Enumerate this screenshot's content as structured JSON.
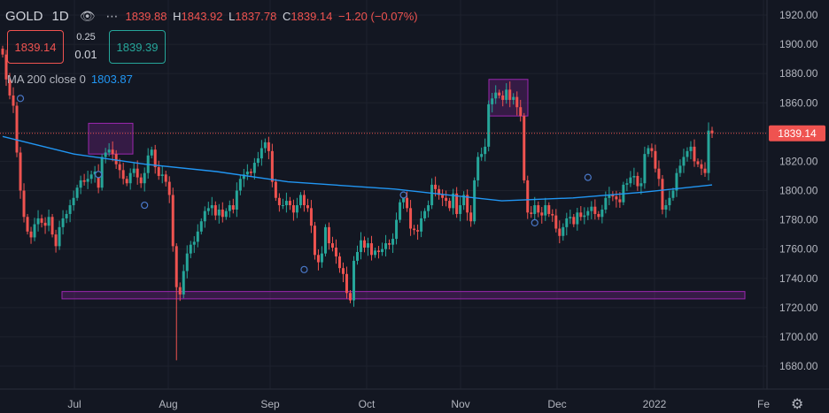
{
  "header": {
    "symbol": "GOLD",
    "timeframe": "1D",
    "open_value": "1839.88",
    "high_label": "H",
    "high_value": "1843.92",
    "low_label": "L",
    "low_value": "1837.78",
    "close_label": "C",
    "close_value": "1839.14",
    "change": "−1.20 (−0.07%)"
  },
  "trade": {
    "sell_price": "1839.14",
    "buy_price": "1839.39",
    "spread_top": "0.25",
    "spread_bottom": "0.01"
  },
  "indicator": {
    "label": "MA 200 close 0",
    "value": "1803.87"
  },
  "current_price_label": "1839.14",
  "colors": {
    "background": "#131722",
    "up": "#26a69a",
    "down": "#ef5350",
    "ma": "#2196f3",
    "zone": "#9c27b0",
    "price_label_bg": "#ef5350"
  },
  "chart_data": {
    "type": "candlestick",
    "y_axis": {
      "min": 1670,
      "max": 1928,
      "ticks": [
        "1920.00",
        "1900.00",
        "1880.00",
        "1860.00",
        "1840.00",
        "1820.00",
        "1800.00",
        "1780.00",
        "1760.00",
        "1740.00",
        "1720.00",
        "1700.00",
        "1680.00"
      ]
    },
    "x_axis": {
      "ticks": [
        "Jul",
        "Aug",
        "Sep",
        "Oct",
        "Nov",
        "Dec",
        "2022",
        "Fe"
      ]
    },
    "candles_close": [
      1893,
      1876,
      1865,
      1858,
      1826,
      1800,
      1782,
      1772,
      1768,
      1777,
      1781,
      1778,
      1776,
      1782,
      1770,
      1762,
      1775,
      1781,
      1784,
      1790,
      1795,
      1802,
      1807,
      1806,
      1808,
      1811,
      1813,
      1802,
      1823,
      1826,
      1828,
      1825,
      1818,
      1814,
      1808,
      1805,
      1812,
      1815,
      1809,
      1805,
      1812,
      1824,
      1828,
      1816,
      1810,
      1811,
      1806,
      1797,
      1762,
      1734,
      1729,
      1745,
      1757,
      1763,
      1765,
      1772,
      1779,
      1786,
      1788,
      1790,
      1783,
      1787,
      1782,
      1786,
      1790,
      1787,
      1800,
      1808,
      1811,
      1813,
      1812,
      1819,
      1822,
      1829,
      1833,
      1827,
      1806,
      1795,
      1790,
      1790,
      1793,
      1790,
      1785,
      1790,
      1797,
      1790,
      1788,
      1776,
      1756,
      1751,
      1757,
      1775,
      1764,
      1761,
      1755,
      1747,
      1743,
      1730,
      1725,
      1752,
      1758,
      1766,
      1761,
      1764,
      1756,
      1759,
      1758,
      1760,
      1764,
      1763,
      1767,
      1780,
      1792,
      1795,
      1788,
      1774,
      1773,
      1772,
      1781,
      1786,
      1790,
      1804,
      1801,
      1797,
      1795,
      1793,
      1788,
      1798,
      1784,
      1790,
      1797,
      1785,
      1779,
      1807,
      1823,
      1825,
      1830,
      1859,
      1863,
      1867,
      1865,
      1862,
      1869,
      1862,
      1864,
      1857,
      1851,
      1807,
      1785,
      1784,
      1790,
      1785,
      1783,
      1790,
      1784,
      1783,
      1774,
      1769,
      1775,
      1781,
      1782,
      1777,
      1785,
      1782,
      1783,
      1786,
      1789,
      1784,
      1782,
      1787,
      1795,
      1797,
      1796,
      1794,
      1792,
      1804,
      1805,
      1809,
      1810,
      1803,
      1805,
      1825,
      1829,
      1827,
      1815,
      1808,
      1787,
      1790,
      1795,
      1800,
      1812,
      1817,
      1823,
      1827,
      1830,
      1820,
      1818,
      1815,
      1812,
      1841,
      1839.14
    ],
    "ma200_anchor_points": [
      [
        0,
        1837
      ],
      [
        20,
        1825
      ],
      [
        40,
        1818
      ],
      [
        60,
        1813
      ],
      [
        80,
        1806
      ],
      [
        110,
        1801
      ],
      [
        140,
        1793
      ],
      [
        160,
        1795
      ],
      [
        180,
        1799
      ],
      [
        199,
        1803.87
      ]
    ],
    "markers": {
      "last_price": 1839.14
    },
    "zones": [
      {
        "name": "support",
        "from": 1726,
        "to": 1731
      },
      {
        "name": "resistance-1",
        "from": 1825,
        "to": 1846
      },
      {
        "name": "resistance-2",
        "from": 1851,
        "to": 1876
      }
    ]
  }
}
